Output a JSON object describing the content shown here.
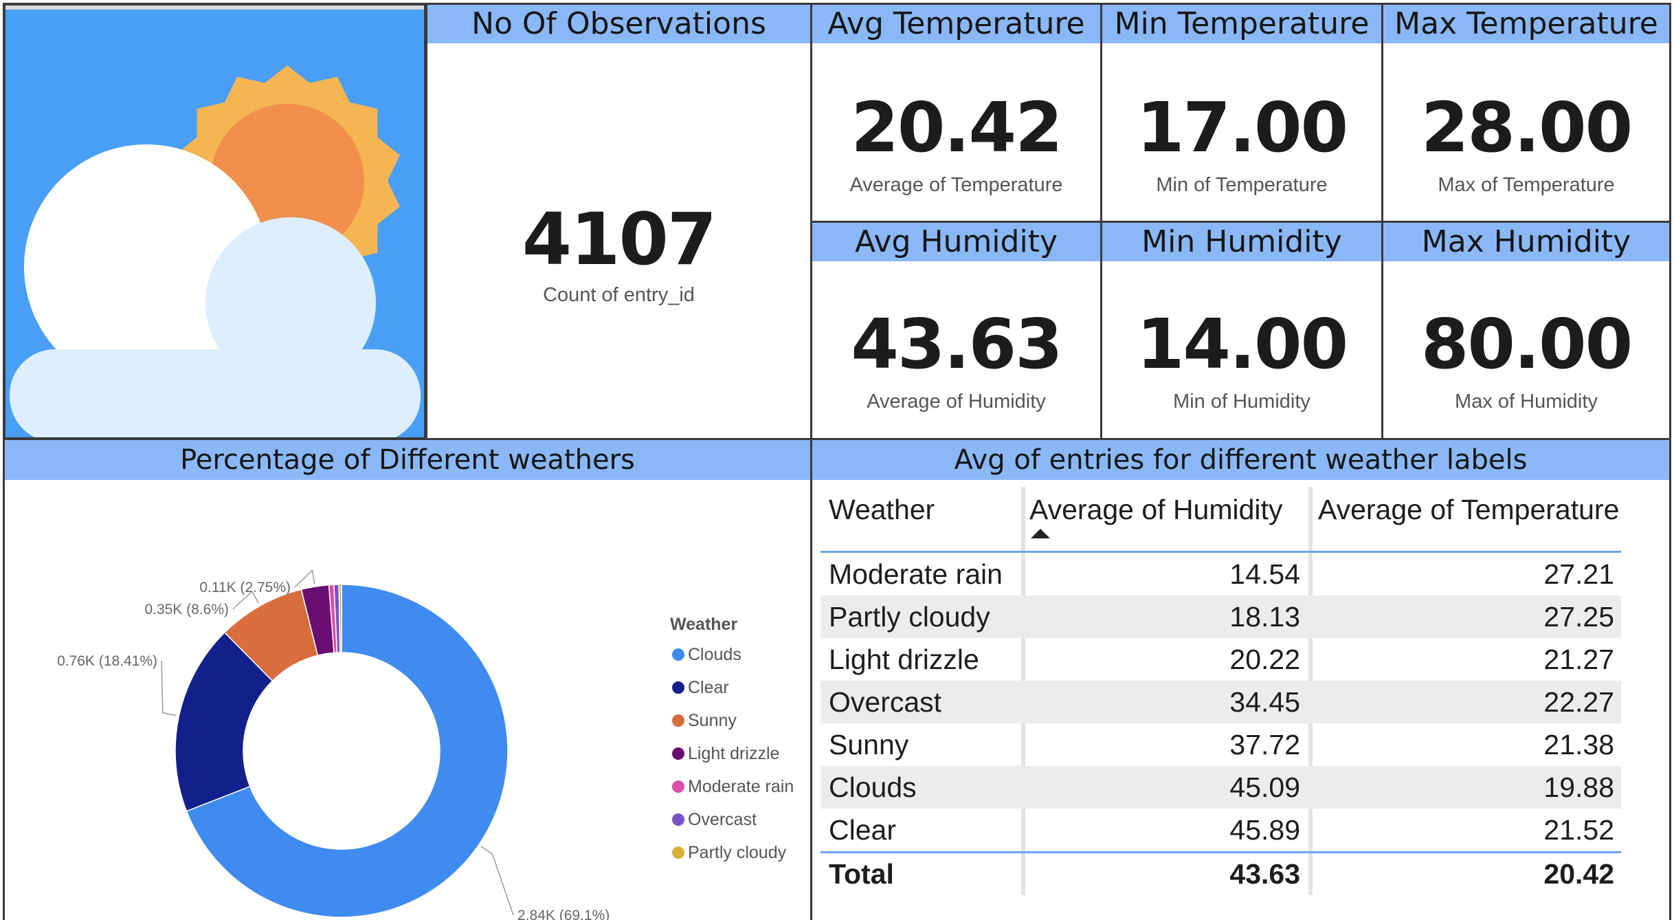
{
  "kpis": {
    "observations": {
      "title": "No Of Observations",
      "value": "4107",
      "caption": "Count of entry_id"
    },
    "avg_temp": {
      "title": "Avg Temperature",
      "value": "20.42",
      "caption": "Average of Temperature"
    },
    "min_temp": {
      "title": "Min Temperature",
      "value": "17.00",
      "caption": "Min of Temperature"
    },
    "max_temp": {
      "title": "Max Temperature",
      "value": "28.00",
      "caption": "Max of Temperature"
    },
    "avg_hum": {
      "title": "Avg Humidity",
      "value": "43.63",
      "caption": "Average of Humidity"
    },
    "min_hum": {
      "title": "Min Humidity",
      "value": "14.00",
      "caption": "Min of Humidity"
    },
    "max_hum": {
      "title": "Max Humidity",
      "value": "80.00",
      "caption": "Max of Humidity"
    }
  },
  "weather_icon": {
    "icon": "sun-behind-cloud-icon",
    "background": "#4a9ff5",
    "sun_outer": "#f5b553",
    "sun_inner": "#f0904c",
    "cloud": "#ddeefc"
  },
  "chart_data": {
    "type": "pie",
    "title": "Percentage of Different weathers",
    "legend_title": "Weather",
    "legend_position": "right",
    "slices": [
      {
        "name": "Clouds",
        "value": 2.84,
        "label": "2.84K (69.1%)",
        "color": "#3f8bf0"
      },
      {
        "name": "Clear",
        "value": 0.76,
        "label": "0.76K (18.41%)",
        "color": "#13208c"
      },
      {
        "name": "Sunny",
        "value": 0.35,
        "label": "0.35K (8.6%)",
        "color": "#d86e3e"
      },
      {
        "name": "Light drizzle",
        "value": 0.11,
        "label": "0.11K (2.75%)",
        "color": "#6a0f72"
      },
      {
        "name": "Moderate rain",
        "value": 0.02,
        "label": "",
        "color": "#db4fa8"
      },
      {
        "name": "Overcast",
        "value": 0.02,
        "label": "",
        "color": "#7a52c8"
      },
      {
        "name": "Partly cloudy",
        "value": 0.01,
        "label": "",
        "color": "#d8b13c"
      }
    ]
  },
  "table": {
    "title": "Avg of entries for different weather labels",
    "columns": [
      "Weather",
      "Average of Humidity",
      "Average of Temperature"
    ],
    "rows": [
      [
        "Moderate rain",
        "14.54",
        "27.21"
      ],
      [
        "Partly cloudy",
        "18.13",
        "27.25"
      ],
      [
        "Light drizzle",
        "20.22",
        "21.27"
      ],
      [
        "Overcast",
        "34.45",
        "22.27"
      ],
      [
        "Sunny",
        "37.72",
        "21.38"
      ],
      [
        "Clouds",
        "45.09",
        "19.88"
      ],
      [
        "Clear",
        "45.89",
        "21.52"
      ]
    ],
    "total": [
      "Total",
      "43.63",
      "20.42"
    ]
  }
}
